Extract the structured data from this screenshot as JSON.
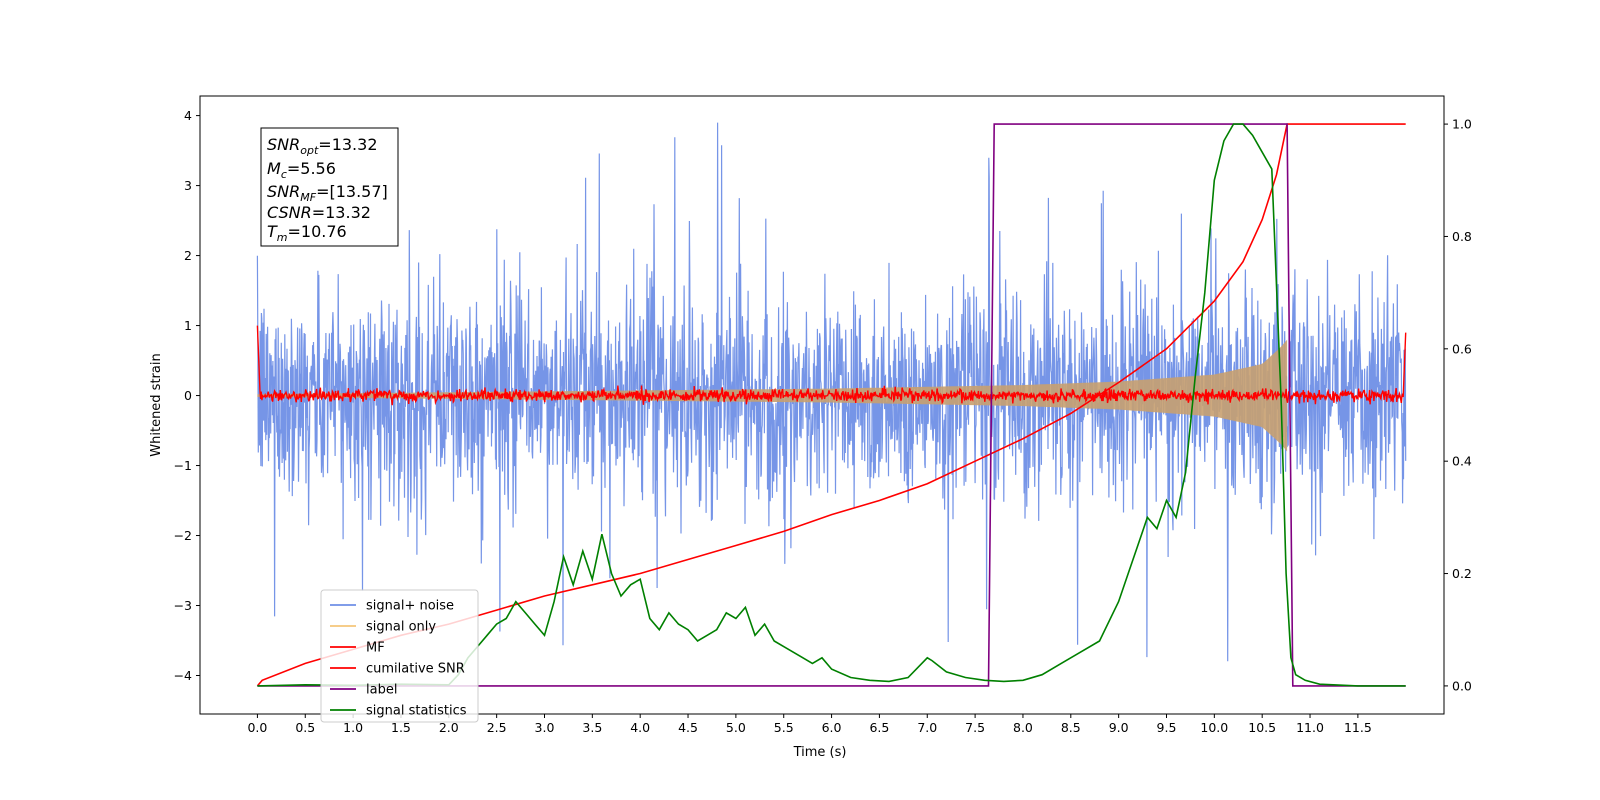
{
  "chart_data": {
    "type": "line",
    "xlabel": "Time (s)",
    "ylabel": "Whitened strain",
    "xlim": [
      -0.6,
      12.4
    ],
    "ylim": [
      -4.55,
      4.28
    ],
    "y2lim": [
      -0.05,
      1.05
    ],
    "x_ticks": [
      0.0,
      0.5,
      1.0,
      1.5,
      2.0,
      2.5,
      3.0,
      3.5,
      4.0,
      4.5,
      5.0,
      5.5,
      6.0,
      6.5,
      7.0,
      7.5,
      8.0,
      8.5,
      9.0,
      9.5,
      10.0,
      10.5,
      11.0,
      11.5
    ],
    "x_tick_labels": [
      "0.0",
      "0.5",
      "1.0",
      "1.5",
      "2.0",
      "2.5",
      "3.0",
      "3.5",
      "4.0",
      "4.5",
      "5.0",
      "5.5",
      "6.0",
      "6.5",
      "7.0",
      "7.5",
      "8.0",
      "8.5",
      "9.0",
      "9.5",
      "10.0",
      "10.5",
      "11.0",
      "11.5"
    ],
    "y_ticks": [
      -4,
      -3,
      -2,
      -1,
      0,
      1,
      2,
      3,
      4
    ],
    "y_tick_labels": [
      "−4",
      "−3",
      "−2",
      "−1",
      "0",
      "1",
      "2",
      "3",
      "4"
    ],
    "y2_ticks": [
      0.0,
      0.2,
      0.4,
      0.6,
      0.8,
      1.0
    ],
    "y2_tick_labels": [
      "0.0",
      "0.2",
      "0.4",
      "0.6",
      "0.8",
      "1.0"
    ],
    "legend_location": "lower-left",
    "legend": [
      {
        "name": "signal+ noise",
        "color": "#6f8fe6"
      },
      {
        "name": "signal only",
        "color": "#f5c67a"
      },
      {
        "name": "MF",
        "color": "#ff0000"
      },
      {
        "name": "cumilative SNR",
        "color": "#ff0000"
      },
      {
        "name": "label",
        "color": "#800080"
      },
      {
        "name": "signal statistics",
        "color": "#008000"
      }
    ],
    "annotation": {
      "snr_opt": {
        "main": "SNR",
        "sub": "opt",
        "value": "=13.32"
      },
      "mc": {
        "main": "M",
        "sub": "c",
        "value": "=5.56"
      },
      "snr_mf": {
        "main": "SNR",
        "sub": "MF",
        "value": "=[13.57]"
      },
      "csnr": {
        "main": "CSNR",
        "value": "=13.32"
      },
      "tm": {
        "main": "T",
        "sub": "m",
        "value": "=10.76"
      }
    },
    "series": [
      {
        "name": "signal+ noise",
        "axis": "left",
        "color": "#6f8fe6",
        "duration": [
          0.0,
          12.0
        ],
        "amplitude_bulk": 1.4,
        "amplitude_peak": 3.6,
        "note_values": "dense noise, approx. range -4.15 to 3.9"
      },
      {
        "name": "signal only",
        "axis": "left",
        "color": "#c8a070",
        "chirp_end": 10.76,
        "envelope": [
          [
            0.0,
            0.02
          ],
          [
            6.0,
            0.1
          ],
          [
            8.0,
            0.15
          ],
          [
            9.0,
            0.2
          ],
          [
            10.0,
            0.3
          ],
          [
            10.5,
            0.45
          ],
          [
            10.7,
            0.7
          ],
          [
            10.76,
            0.8
          ]
        ]
      },
      {
        "name": "MF",
        "axis": "left",
        "color": "#ff0000",
        "typical_amplitude": 0.08,
        "start_value": 1.0,
        "end_value": 0.9
      },
      {
        "name": "cumilative SNR",
        "axis": "right",
        "color": "#ff0000",
        "x": [
          0.0,
          0.05,
          0.5,
          1.0,
          1.5,
          2.0,
          2.5,
          3.0,
          3.5,
          4.0,
          4.5,
          5.0,
          5.5,
          6.0,
          6.5,
          7.0,
          7.5,
          8.0,
          8.5,
          9.0,
          9.5,
          10.0,
          10.3,
          10.5,
          10.65,
          10.76,
          12.0
        ],
        "y": [
          0.0,
          0.01,
          0.04,
          0.065,
          0.09,
          0.11,
          0.135,
          0.16,
          0.18,
          0.2,
          0.225,
          0.25,
          0.275,
          0.305,
          0.33,
          0.36,
          0.4,
          0.44,
          0.485,
          0.54,
          0.6,
          0.685,
          0.755,
          0.83,
          0.91,
          1.0,
          1.0
        ]
      },
      {
        "name": "label",
        "axis": "right",
        "color": "#800080",
        "x": [
          0.0,
          7.64,
          7.7,
          10.76,
          10.82,
          12.0
        ],
        "y": [
          0.0,
          0.0,
          1.0,
          1.0,
          0.0,
          0.0
        ]
      },
      {
        "name": "signal statistics",
        "axis": "right",
        "color": "#008000",
        "x": [
          0.0,
          0.5,
          1.0,
          1.5,
          2.0,
          2.1,
          2.2,
          2.3,
          2.4,
          2.5,
          2.6,
          2.7,
          2.8,
          2.9,
          3.0,
          3.1,
          3.2,
          3.3,
          3.4,
          3.5,
          3.6,
          3.7,
          3.8,
          3.9,
          4.0,
          4.1,
          4.2,
          4.3,
          4.4,
          4.5,
          4.6,
          4.7,
          4.8,
          4.9,
          5.0,
          5.1,
          5.2,
          5.3,
          5.4,
          5.5,
          5.6,
          5.7,
          5.8,
          5.9,
          6.0,
          6.2,
          6.4,
          6.6,
          6.8,
          7.0,
          7.05,
          7.2,
          7.4,
          7.6,
          7.8,
          8.0,
          8.2,
          8.4,
          8.5,
          8.6,
          8.8,
          9.0,
          9.1,
          9.2,
          9.3,
          9.4,
          9.5,
          9.6,
          9.7,
          9.8,
          9.9,
          10.0,
          10.1,
          10.2,
          10.3,
          10.4,
          10.5,
          10.6,
          10.7,
          10.75,
          10.8,
          10.85,
          10.95,
          11.1,
          11.5,
          12.0
        ],
        "y": [
          0.0,
          0.002,
          0.001,
          0.003,
          0.002,
          0.02,
          0.05,
          0.07,
          0.09,
          0.11,
          0.12,
          0.15,
          0.13,
          0.11,
          0.09,
          0.15,
          0.23,
          0.18,
          0.24,
          0.19,
          0.27,
          0.2,
          0.16,
          0.18,
          0.19,
          0.12,
          0.1,
          0.13,
          0.11,
          0.1,
          0.08,
          0.09,
          0.1,
          0.13,
          0.12,
          0.14,
          0.09,
          0.11,
          0.08,
          0.07,
          0.06,
          0.05,
          0.04,
          0.05,
          0.03,
          0.015,
          0.01,
          0.008,
          0.015,
          0.05,
          0.045,
          0.025,
          0.015,
          0.01,
          0.008,
          0.01,
          0.02,
          0.04,
          0.05,
          0.06,
          0.08,
          0.15,
          0.2,
          0.25,
          0.3,
          0.28,
          0.33,
          0.3,
          0.38,
          0.55,
          0.7,
          0.9,
          0.97,
          1.0,
          1.0,
          0.98,
          0.95,
          0.92,
          0.5,
          0.2,
          0.05,
          0.02,
          0.01,
          0.003,
          0.0,
          0.0
        ]
      }
    ]
  }
}
